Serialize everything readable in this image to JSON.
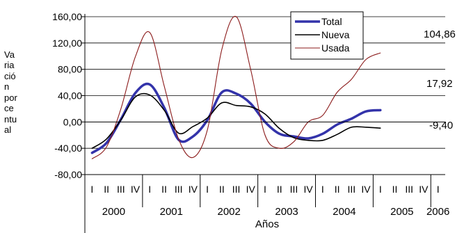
{
  "chart_data": {
    "type": "line",
    "title": "",
    "xlabel": "Años",
    "ylabel_lines": [
      "Va",
      "ria",
      "ció",
      "n",
      "por",
      "ce",
      "ntu",
      "al"
    ],
    "ylim": [
      -80,
      160
    ],
    "yticks": [
      -80,
      -40,
      0,
      40,
      80,
      120,
      160
    ],
    "ytick_labels": [
      "-80,00",
      "-40,00",
      "0,00",
      "40,00",
      "80,00",
      "120,00",
      "160,00"
    ],
    "quarter_labels": [
      "I",
      "II",
      "III",
      "IV",
      "I",
      "II",
      "III",
      "IV",
      "I",
      "II",
      "III",
      "IV",
      "I",
      "II",
      "III",
      "IV",
      "I",
      "II",
      "III",
      "IV",
      "I",
      "II",
      "III",
      "IV",
      "I"
    ],
    "years": [
      {
        "label": "2000",
        "quarters": 4
      },
      {
        "label": "2001",
        "quarters": 4
      },
      {
        "label": "2002",
        "quarters": 4
      },
      {
        "label": "2003",
        "quarters": 4
      },
      {
        "label": "2004",
        "quarters": 4
      },
      {
        "label": "2005",
        "quarters": 4
      },
      {
        "label": "2006",
        "quarters": 1
      }
    ],
    "legend_position": "top-right",
    "series": [
      {
        "name": "Total",
        "color": "#3333aa",
        "width": 3.5,
        "values": [
          -47,
          -32,
          4,
          44,
          57,
          22,
          -27,
          -22,
          3,
          45,
          43,
          28,
          0,
          -18,
          -22,
          -25,
          -18,
          -4,
          5,
          16,
          17.92
        ]
      },
      {
        "name": "Nueva",
        "color": "#000000",
        "width": 1.6,
        "values": [
          -40,
          -26,
          3,
          38,
          41,
          18,
          -17,
          -7,
          6,
          29,
          25,
          23,
          12,
          -10,
          -24,
          -28,
          -28,
          -19,
          -8,
          -8,
          -9.4
        ]
      },
      {
        "name": "Usada",
        "color": "#8b1a1a",
        "width": 1.1,
        "values": [
          -56,
          -38,
          20,
          99,
          136,
          55,
          -26,
          -54,
          -12,
          110,
          160,
          80,
          -20,
          -40,
          -30,
          0,
          10,
          45,
          65,
          95,
          104.86
        ]
      }
    ],
    "end_labels": [
      "17,92",
      "-9,40",
      "104,86"
    ]
  }
}
